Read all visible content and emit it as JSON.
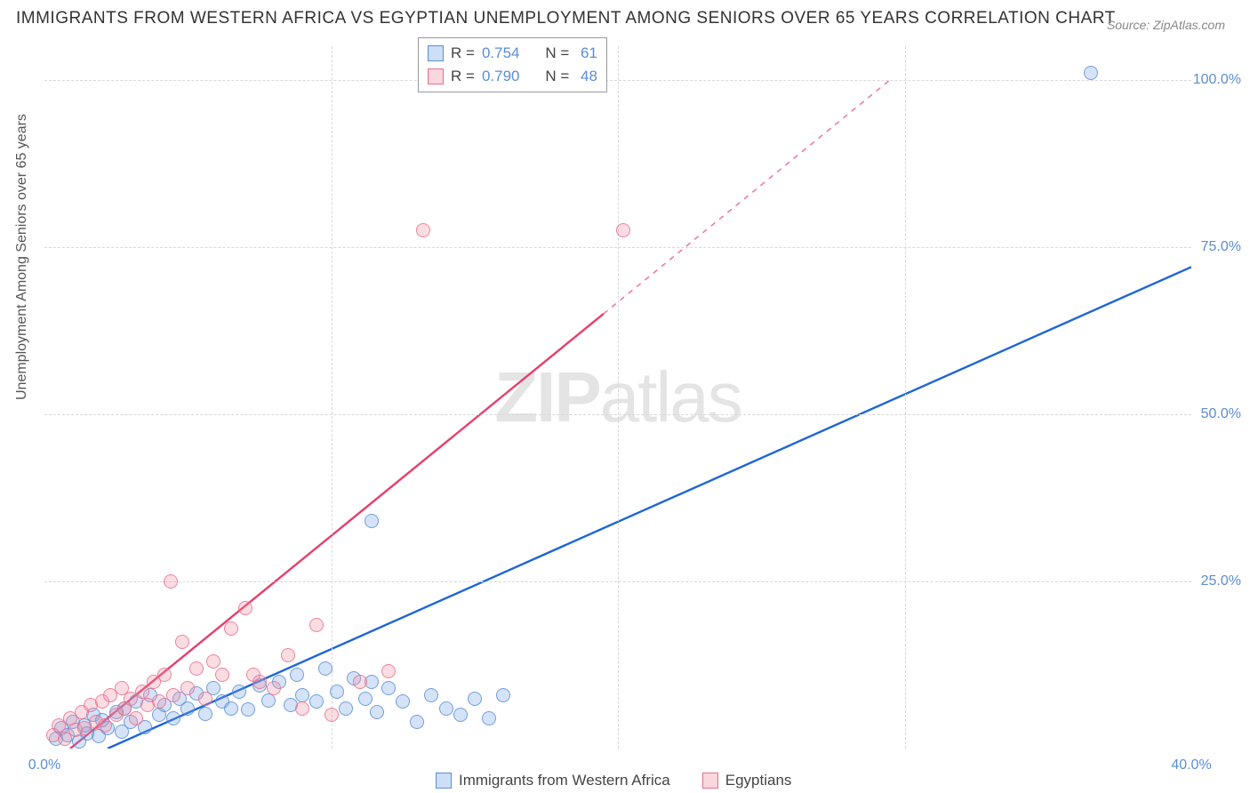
{
  "title": "IMMIGRANTS FROM WESTERN AFRICA VS EGYPTIAN UNEMPLOYMENT AMONG SENIORS OVER 65 YEARS CORRELATION CHART",
  "source": "Source: ZipAtlas.com",
  "ylabel": "Unemployment Among Seniors over 65 years",
  "watermark_a": "ZIP",
  "watermark_b": "atlas",
  "type": "scatter",
  "xlim": [
    0,
    40
  ],
  "ylim": [
    0,
    105
  ],
  "xticks": [
    0,
    40
  ],
  "yticks": [
    25,
    50,
    75,
    100
  ],
  "xtick_format": "pct1",
  "ytick_format": "pct1",
  "xvgrid": [
    10,
    20,
    30
  ],
  "tick_color": "#5b8dd6",
  "grid_color": "#d8d8d8",
  "series": [
    {
      "name": "Immigrants from Western Africa",
      "color": "#6fa3e6",
      "fill": "rgba(111,163,230,0.35)",
      "stroke": "#5b8dd6",
      "R": "0.754",
      "N": "61",
      "trend": {
        "x1": 2.2,
        "y1": 0,
        "x2": 40,
        "y2": 72,
        "color": "#1f66d4",
        "width": 2.4
      },
      "points": [
        [
          0.4,
          1.5
        ],
        [
          0.6,
          3
        ],
        [
          0.8,
          2
        ],
        [
          1,
          4
        ],
        [
          1.2,
          1
        ],
        [
          1.4,
          3.5
        ],
        [
          1.5,
          2.2
        ],
        [
          1.7,
          5
        ],
        [
          1.9,
          1.8
        ],
        [
          2,
          4.2
        ],
        [
          2.2,
          3
        ],
        [
          2.5,
          5.5
        ],
        [
          2.7,
          2.5
        ],
        [
          2.8,
          6
        ],
        [
          3,
          4
        ],
        [
          3.2,
          7
        ],
        [
          3.5,
          3.2
        ],
        [
          3.7,
          8
        ],
        [
          4,
          5
        ],
        [
          4.2,
          6.5
        ],
        [
          4.5,
          4.5
        ],
        [
          4.7,
          7.5
        ],
        [
          5,
          6
        ],
        [
          5.3,
          8.3
        ],
        [
          5.6,
          5.2
        ],
        [
          5.9,
          9
        ],
        [
          6.2,
          7
        ],
        [
          6.5,
          6
        ],
        [
          6.8,
          8.5
        ],
        [
          7.1,
          5.8
        ],
        [
          7.5,
          9.5
        ],
        [
          7.8,
          7.2
        ],
        [
          8.2,
          10
        ],
        [
          8.6,
          6.5
        ],
        [
          8.8,
          11
        ],
        [
          9,
          8
        ],
        [
          9.5,
          7
        ],
        [
          9.8,
          12
        ],
        [
          10.2,
          8.5
        ],
        [
          10.5,
          6
        ],
        [
          10.8,
          10.5
        ],
        [
          11.2,
          7.5
        ],
        [
          11.6,
          5.5
        ],
        [
          12,
          9
        ],
        [
          12.5,
          7
        ],
        [
          13,
          4
        ],
        [
          13.5,
          8
        ],
        [
          14,
          6
        ],
        [
          14.5,
          5
        ],
        [
          15,
          7.5
        ],
        [
          15.5,
          4.5
        ],
        [
          16,
          8
        ],
        [
          11.4,
          34
        ],
        [
          11.4,
          10
        ],
        [
          36.5,
          101
        ]
      ]
    },
    {
      "name": "Egyptians",
      "color": "#f08ba3",
      "fill": "rgba(240,139,163,0.35)",
      "stroke": "#eb6e8c",
      "R": "0.790",
      "N": "48",
      "trend": {
        "x1": 0.9,
        "y1": 0,
        "x2": 19.5,
        "y2": 65,
        "color": "#e63e6b",
        "width": 2.4,
        "dash_ext_x2": 29.5,
        "dash_ext_y2": 100
      },
      "points": [
        [
          0.3,
          2
        ],
        [
          0.5,
          3.5
        ],
        [
          0.7,
          1.5
        ],
        [
          0.9,
          4.5
        ],
        [
          1.1,
          2.8
        ],
        [
          1.3,
          5.5
        ],
        [
          1.4,
          3
        ],
        [
          1.6,
          6.5
        ],
        [
          1.8,
          4
        ],
        [
          2,
          7
        ],
        [
          2.1,
          3.5
        ],
        [
          2.3,
          8
        ],
        [
          2.5,
          5
        ],
        [
          2.7,
          9
        ],
        [
          2.8,
          6
        ],
        [
          3,
          7.5
        ],
        [
          3.2,
          4.5
        ],
        [
          3.4,
          8.5
        ],
        [
          3.6,
          6.5
        ],
        [
          3.8,
          10
        ],
        [
          4,
          7
        ],
        [
          4.2,
          11
        ],
        [
          4.5,
          8
        ],
        [
          4.8,
          16
        ],
        [
          5,
          9
        ],
        [
          5.3,
          12
        ],
        [
          5.6,
          7.5
        ],
        [
          5.9,
          13
        ],
        [
          6.2,
          11
        ],
        [
          6.5,
          18
        ],
        [
          7,
          21
        ],
        [
          7.3,
          11
        ],
        [
          7.5,
          10
        ],
        [
          8,
          9
        ],
        [
          8.5,
          14
        ],
        [
          9,
          6
        ],
        [
          9.5,
          18.5
        ],
        [
          10,
          5
        ],
        [
          11,
          10
        ],
        [
          12,
          11.5
        ],
        [
          4.4,
          25
        ],
        [
          13.2,
          77.5
        ],
        [
          20.2,
          77.5
        ]
      ]
    }
  ],
  "legend_bottom": [
    {
      "label": "Immigrants from Western Africa",
      "series": 0
    },
    {
      "label": "Egyptians",
      "series": 1
    }
  ]
}
